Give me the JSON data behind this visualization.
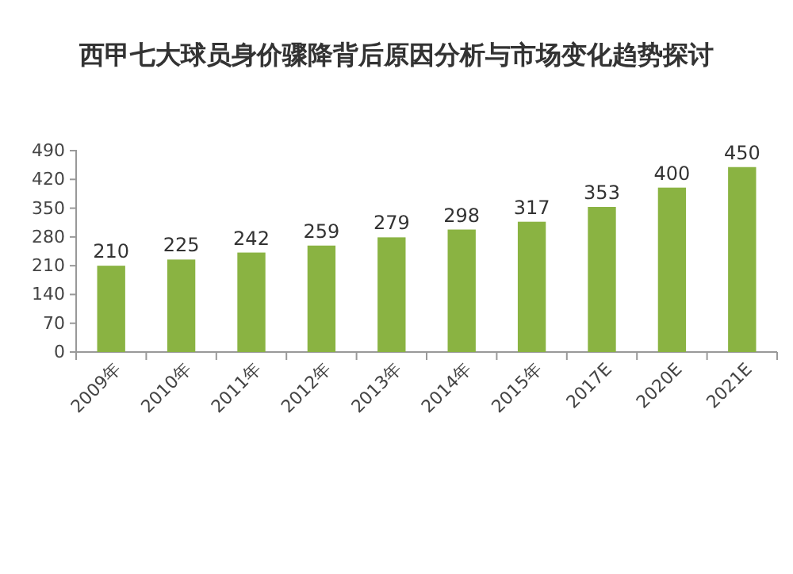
{
  "chart_data": {
    "type": "bar",
    "title": "西甲七大球员身价骤降背后原因分析与市场变化趋势探讨",
    "categories": [
      "2009年",
      "2010年",
      "2011年",
      "2012年",
      "2013年",
      "2014年",
      "2015年",
      "2017E",
      "2020E",
      "2021E"
    ],
    "values": [
      210,
      225,
      242,
      259,
      279,
      298,
      317,
      353,
      400,
      450
    ],
    "color": "#8ab342",
    "ylim": [
      0,
      490
    ],
    "yticks": [
      0,
      70,
      140,
      210,
      280,
      350,
      420,
      490
    ],
    "data_labels": true,
    "grid": false
  }
}
